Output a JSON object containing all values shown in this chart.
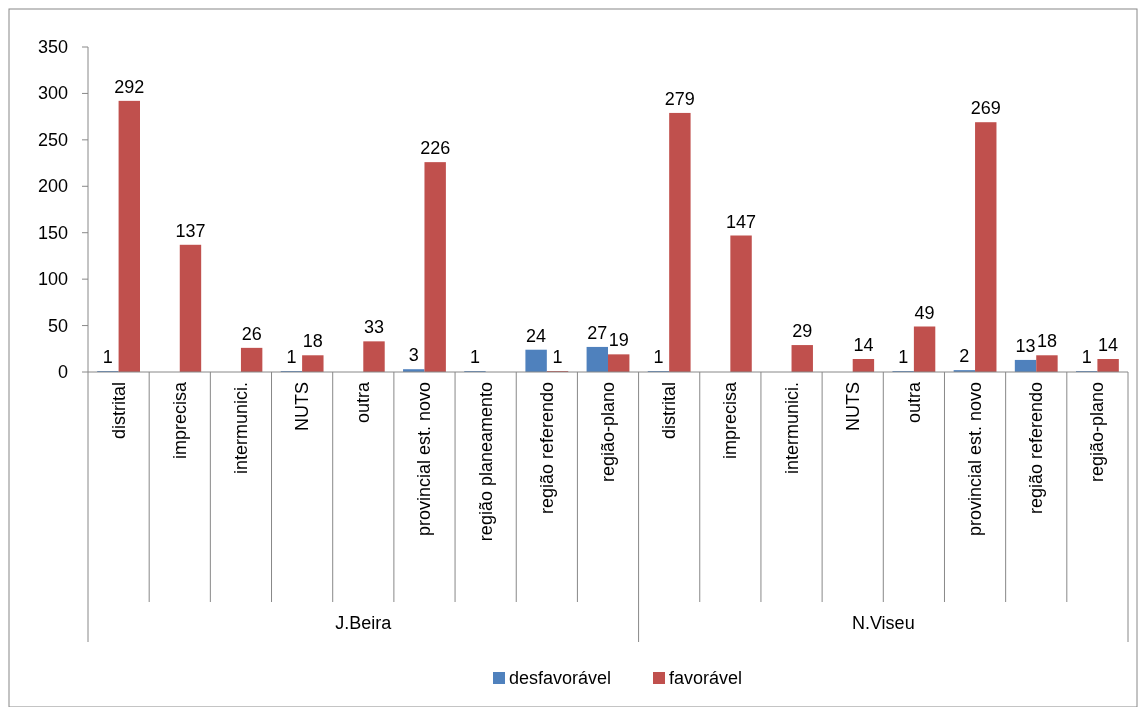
{
  "chart_data": {
    "type": "bar",
    "categories": [
      "distrital",
      "imprecisa",
      "intermunici.",
      "NUTS",
      "outra",
      "provincial est. novo",
      "região planeamento",
      "região referendo",
      "região-plano",
      "distrital",
      "imprecisa",
      "intermunici.",
      "NUTS",
      "outra",
      "provincial est. novo",
      "região referendo",
      "região-plano"
    ],
    "annotations": [
      "J.Beira",
      "N.Viseu"
    ],
    "series": [
      {
        "name": "desfavorável",
        "color": "#4f81bd",
        "values": [
          1,
          null,
          null,
          1,
          null,
          3,
          1,
          24,
          27,
          1,
          null,
          null,
          null,
          1,
          2,
          13,
          1
        ]
      },
      {
        "name": "favorável",
        "color": "#c0504d",
        "values": [
          292,
          137,
          26,
          18,
          33,
          226,
          null,
          1,
          19,
          279,
          147,
          29,
          14,
          49,
          269,
          18,
          14
        ]
      }
    ],
    "ylim": [
      0,
      350
    ],
    "yticks": [
      0,
      50,
      100,
      150,
      200,
      250,
      300,
      350
    ],
    "data_labels": true,
    "grid": false,
    "legend": "bottom"
  }
}
